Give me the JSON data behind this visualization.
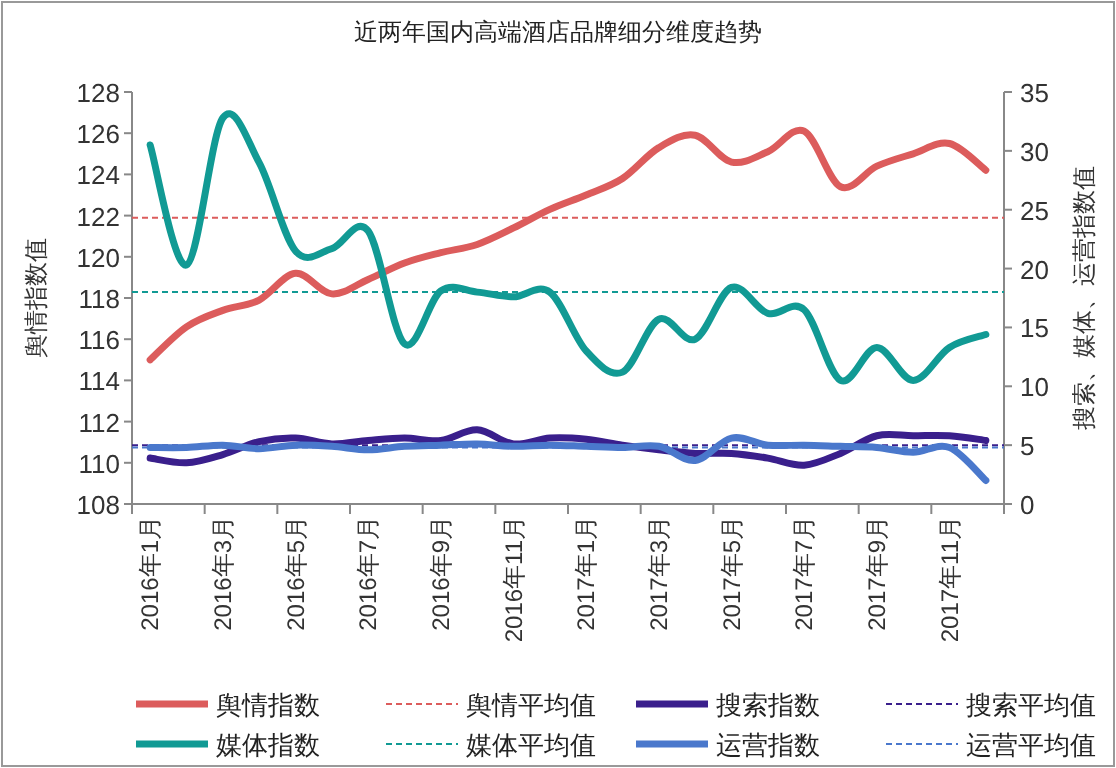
{
  "chart_data": {
    "type": "line",
    "title": "近两年国内高端酒店品牌细分维度趋势",
    "ylabel": "舆情指数值",
    "y2label": "搜索、媒体、运营指数值",
    "categories": [
      "2016年1月",
      null,
      "2016年3月",
      null,
      "2016年5月",
      null,
      "2016年7月",
      null,
      "2016年9月",
      null,
      "2016年11月",
      null,
      "2017年1月",
      null,
      "2017年3月",
      null,
      "2017年5月",
      null,
      "2017年7月",
      null,
      "2017年9月",
      null,
      "2017年11月",
      null
    ],
    "series": [
      {
        "name": "舆情指数",
        "color": "#dc5c5c",
        "axis": "y",
        "values": [
          115,
          116.6,
          117.4,
          117.9,
          119.2,
          118.2,
          118.9,
          119.7,
          120.2,
          120.6,
          121.4,
          122.3,
          123.0,
          123.8,
          125.3,
          125.9,
          124.6,
          125.1,
          126.1,
          123.4,
          124.4,
          125.0,
          125.5,
          124.2
        ]
      },
      {
        "name": "搜索指数",
        "color": "#3a1f8c",
        "axis": "y2",
        "values": [
          3.9,
          3.5,
          4.2,
          5.3,
          5.6,
          5.1,
          5.4,
          5.6,
          5.4,
          6.3,
          5.1,
          5.6,
          5.5,
          5.0,
          4.6,
          4.3,
          4.3,
          3.9,
          3.3,
          4.3,
          5.8,
          5.8,
          5.8,
          5.4
        ]
      },
      {
        "name": "媒体指数",
        "color": "#119a94",
        "axis": "y2",
        "values": [
          30.5,
          20.3,
          32.8,
          29,
          21.5,
          21.7,
          23.2,
          13.6,
          18.1,
          18,
          17.6,
          18,
          13,
          11.2,
          15.7,
          14,
          18.4,
          16.2,
          16.5,
          10.5,
          13.3,
          10.5,
          13.3,
          14.4
        ]
      },
      {
        "name": "运营指数",
        "color": "#4a78cc",
        "axis": "y2",
        "values": [
          4.8,
          4.8,
          5.0,
          4.7,
          5.0,
          4.9,
          4.6,
          4.9,
          5.0,
          5.1,
          4.9,
          5.0,
          4.9,
          4.8,
          4.9,
          3.7,
          5.6,
          5.0,
          5.0,
          4.9,
          4.8,
          4.4,
          4.8,
          2.0
        ]
      }
    ],
    "ref_lines": [
      {
        "axis": "y",
        "value": 121.9,
        "label": "舆情平均值",
        "color": "#dc5c5c",
        "line_style": "dashed"
      },
      {
        "axis": "y2",
        "value": 5.0,
        "label": "搜索平均值",
        "color": "#3a1f8c",
        "line_style": "dashed"
      },
      {
        "axis": "y2",
        "value": 18,
        "label": "媒体平均值",
        "color": "#119a94",
        "line_style": "dashed"
      },
      {
        "axis": "y2",
        "value": 4.8,
        "label": "运营平均值",
        "color": "#4a78cc",
        "line_style": "dashed"
      }
    ],
    "ylim": [
      108,
      128
    ],
    "yticks": [
      108,
      110,
      112,
      114,
      116,
      118,
      120,
      122,
      124,
      126,
      128
    ],
    "y2lim": [
      0,
      35
    ],
    "y2ticks": [
      0,
      5,
      10,
      15,
      20,
      25,
      30,
      35
    ],
    "legend": "bottom",
    "grid": false,
    "line_style": "solid"
  }
}
